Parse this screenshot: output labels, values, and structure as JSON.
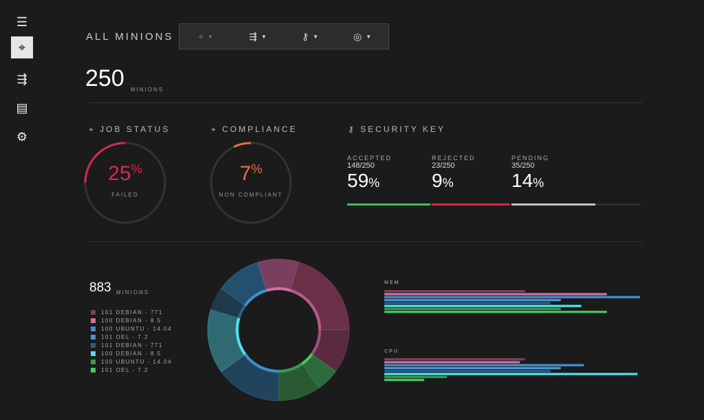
{
  "sidebar": {
    "items": [
      {
        "icon": "menu-icon",
        "glyph": "☰"
      },
      {
        "icon": "crosshair-icon",
        "glyph": "⌖",
        "active": true
      },
      {
        "icon": "connector-icon",
        "glyph": "⇶"
      },
      {
        "icon": "document-icon",
        "glyph": "▤"
      },
      {
        "icon": "gear-icon",
        "glyph": "⚙"
      }
    ]
  },
  "header": {
    "title": "ALL MINIONS",
    "toolbar": [
      {
        "icon": "crosshair-icon",
        "glyph": "⌖"
      },
      {
        "icon": "connector-icon",
        "glyph": "⇶"
      },
      {
        "icon": "key-icon",
        "glyph": "⚷"
      },
      {
        "icon": "target-icon",
        "glyph": "◎"
      }
    ]
  },
  "summary": {
    "count": "250",
    "unit": "MINIONS"
  },
  "job_status": {
    "title": "JOB STATUS",
    "value": "25",
    "pct": "%",
    "label": "FAILED",
    "fraction": 0.25,
    "color": "#d42a4e"
  },
  "compliance": {
    "title": "COMPLIANCE",
    "value": "7",
    "pct": "%",
    "label": "NON COMPLIANT",
    "fraction": 0.07,
    "color": "#ef6a45"
  },
  "security": {
    "title": "SECURITY KEY",
    "cols": [
      {
        "label": "ACCEPTED",
        "count": "148/250",
        "value": "59",
        "pct": "%",
        "color": "#3cc15a"
      },
      {
        "label": "REJECTED",
        "count": "23/250",
        "value": "9",
        "pct": "%",
        "color": "#d42a4e"
      },
      {
        "label": "PENDING",
        "count": "35/250",
        "value": "14",
        "pct": "%",
        "color": "#c4c4c4"
      }
    ]
  },
  "distribution": {
    "count": "883",
    "unit": "MINIONS",
    "legend": [
      {
        "label": "101 DEBIAN - 771",
        "color": "#7a3f5e"
      },
      {
        "label": "100 DEBIAN - 8.5",
        "color": "#d46fa0"
      },
      {
        "label": "100 UBUNTU - 14.04",
        "color": "#3d8fd1"
      },
      {
        "label": "101 OEL  - 7.2",
        "color": "#4a95d6"
      },
      {
        "label": "101 DEBIAN - 771",
        "color": "#2e5f85"
      },
      {
        "label": "100 DEBIAN - 8.5",
        "color": "#4fe0f0"
      },
      {
        "label": "100 UBUNTU - 14.04",
        "color": "#3a9a4e"
      },
      {
        "label": "101 OEL  - 7.2",
        "color": "#44c860"
      }
    ]
  },
  "chart_data": [
    {
      "type": "pie",
      "variant": "donut",
      "values": [
        9.4,
        20.3,
        10,
        5.3,
        9.7,
        15,
        14.7,
        5.3,
        10.3
      ],
      "colors": [
        "#7a3f5e",
        "#6a3048",
        "#5a2a40",
        "#2f6b3a",
        "#2a5a34",
        "#22435c",
        "#2f6a73",
        "#1e3a4a",
        "#24506e"
      ],
      "inner_colors": [
        "#d46fa0",
        "#b85c8a",
        "#a05078",
        "#44c860",
        "#3a9a4e",
        "#3d8fd1",
        "#4fe0f0",
        "#2e5f85",
        "#3d8fd1"
      ]
    },
    {
      "type": "bar",
      "orientation": "horizontal",
      "title": "MEM",
      "values": [
        0.55,
        0.87,
        1.0,
        0.69,
        0.65,
        0.77,
        0.69,
        0.87
      ]
    },
    {
      "type": "bar",
      "orientation": "horizontal",
      "title": "CPU",
      "values": [
        0.55,
        0.53,
        0.78,
        0.69,
        0.65,
        0.99,
        0.245,
        0.156
      ]
    }
  ]
}
